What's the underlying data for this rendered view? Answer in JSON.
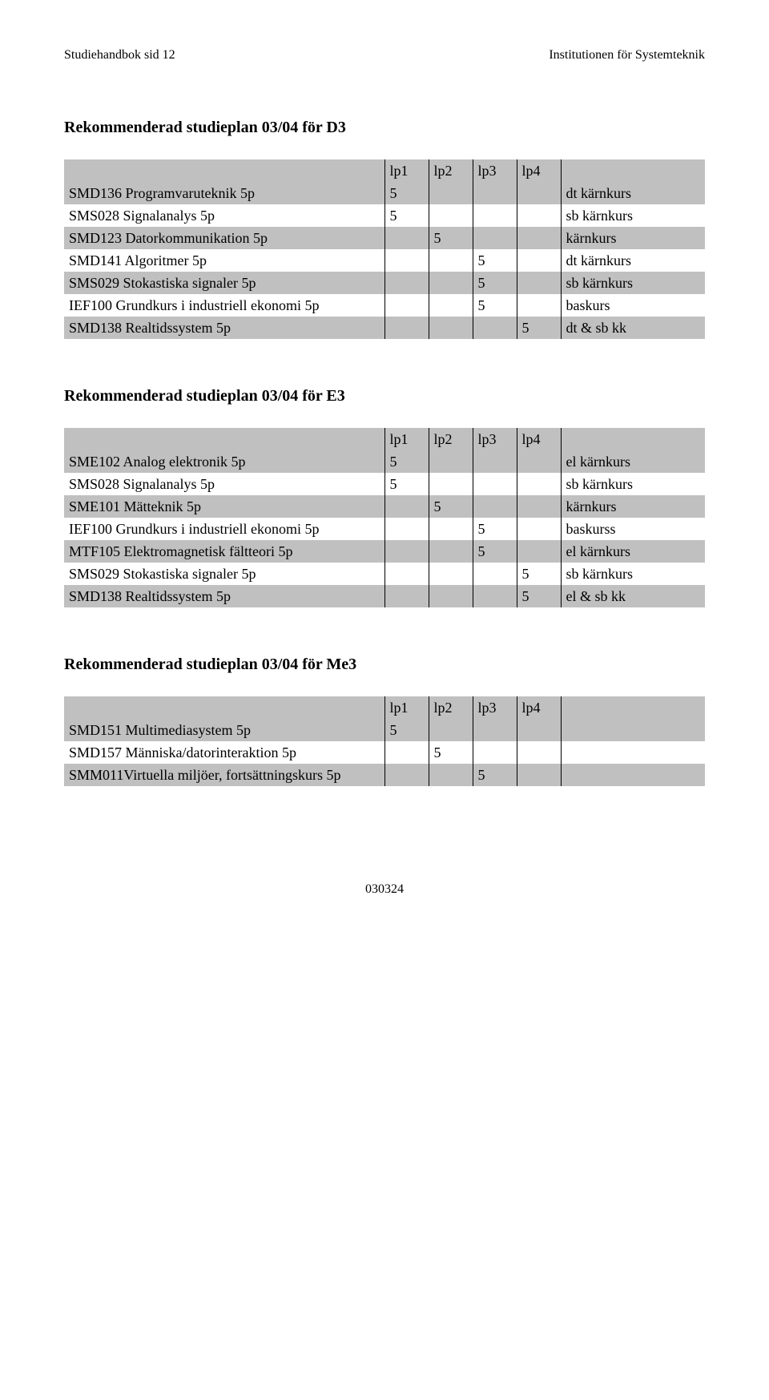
{
  "colors": {
    "shaded": "#c0c0c0",
    "text": "#000000",
    "background": "#ffffff",
    "border": "#000000"
  },
  "header": {
    "left": "Studiehandbok sid 12",
    "right": "Institutionen för Systemteknik"
  },
  "lp_headers": [
    "lp1",
    "lp2",
    "lp3",
    "lp4"
  ],
  "sections": [
    {
      "title": "Rekommenderad studieplan 03/04 för D3",
      "rows": [
        {
          "shaded": true,
          "course": "SMD136 Programvaruteknik 5p",
          "lp": [
            "5",
            "",
            "",
            ""
          ],
          "note": "dt kärnkurs"
        },
        {
          "shaded": false,
          "course": "SMS028 Signalanalys 5p",
          "lp": [
            "5",
            "",
            "",
            ""
          ],
          "note": "sb kärnkurs"
        },
        {
          "shaded": true,
          "course": "SMD123 Datorkommunikation 5p",
          "lp": [
            "",
            "5",
            "",
            ""
          ],
          "note": "kärnkurs"
        },
        {
          "shaded": false,
          "course": "SMD141 Algoritmer 5p",
          "lp": [
            "",
            "",
            "5",
            ""
          ],
          "note": "dt kärnkurs"
        },
        {
          "shaded": true,
          "course": "SMS029 Stokastiska signaler 5p",
          "lp": [
            "",
            "",
            "5",
            ""
          ],
          "note": "sb kärnkurs"
        },
        {
          "shaded": false,
          "course": "IEF100 Grundkurs i industriell ekonomi 5p",
          "lp": [
            "",
            "",
            "5",
            ""
          ],
          "note": "baskurs"
        },
        {
          "shaded": true,
          "course": "SMD138 Realtidssystem 5p",
          "lp": [
            "",
            "",
            "",
            "5"
          ],
          "note": "dt & sb kk"
        }
      ]
    },
    {
      "title": "Rekommenderad studieplan 03/04 för E3",
      "rows": [
        {
          "shaded": true,
          "course": "SME102 Analog elektronik 5p",
          "lp": [
            "5",
            "",
            "",
            ""
          ],
          "note": "el kärnkurs"
        },
        {
          "shaded": false,
          "course": "SMS028 Signalanalys 5p",
          "lp": [
            "5",
            "",
            "",
            ""
          ],
          "note": "sb kärnkurs"
        },
        {
          "shaded": true,
          "course": "SME101 Mätteknik 5p",
          "lp": [
            "",
            "5",
            "",
            ""
          ],
          "note": "kärnkurs"
        },
        {
          "shaded": false,
          "course": "IEF100 Grundkurs i industriell ekonomi 5p",
          "lp": [
            "",
            "",
            "5",
            ""
          ],
          "note": "baskurss"
        },
        {
          "shaded": true,
          "course": "MTF105 Elektromagnetisk fältteori 5p",
          "lp": [
            "",
            "",
            "5",
            ""
          ],
          "note": "el kärnkurs"
        },
        {
          "shaded": false,
          "course": "SMS029 Stokastiska signaler 5p",
          "lp": [
            "",
            "",
            "",
            "5"
          ],
          "note": "sb kärnkurs"
        },
        {
          "shaded": true,
          "course": "SMD138 Realtidssystem 5p",
          "lp": [
            "",
            "",
            "",
            "5"
          ],
          "note": "el & sb kk"
        }
      ]
    },
    {
      "title": "Rekommenderad studieplan 03/04 för Me3",
      "rows": [
        {
          "shaded": true,
          "course": "SMD151 Multimediasystem 5p",
          "lp": [
            "5",
            "",
            "",
            ""
          ],
          "note": ""
        },
        {
          "shaded": false,
          "course": "SMD157 Människa/datorinteraktion 5p",
          "lp": [
            "",
            "5",
            "",
            ""
          ],
          "note": ""
        },
        {
          "shaded": true,
          "course": "SMM011Virtuella miljöer, fortsättningskurs 5p",
          "lp": [
            "",
            "",
            "5",
            ""
          ],
          "note": ""
        }
      ]
    }
  ],
  "footer": "030324"
}
